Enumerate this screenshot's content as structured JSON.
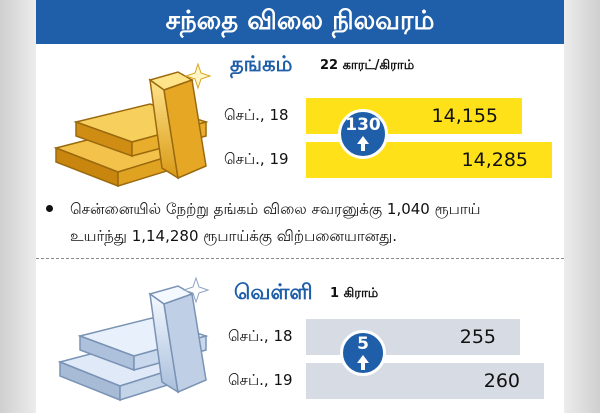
{
  "header": {
    "title": "சந்தை விலை நிலவரம்"
  },
  "gold": {
    "name": "தங்கம்",
    "unit": "22 காரட்/கிராம்",
    "rows": [
      {
        "date": "செப்., 18",
        "price": "14,155"
      },
      {
        "date": "செப்., 19",
        "price": "14,285"
      }
    ],
    "change": "130",
    "bar_color": "#ffe11a",
    "note": "சென்னையில் நேற்று தங்கம் விலை சவரனுக்கு 1,040 ரூபாய் உயர்ந்து 1,14,280 ரூபாய்க்கு விற்பனையானது."
  },
  "silver": {
    "name": "வெள்ளி",
    "unit": "1 கிராம்",
    "rows": [
      {
        "date": "செப்., 18",
        "price": "255"
      },
      {
        "date": "செப்., 19",
        "price": "260"
      }
    ],
    "change": "5",
    "bar_color": "#d7dbe3"
  },
  "colors": {
    "accent": "#1f5ea8"
  },
  "icons": {
    "gold": "gold-bars-icon",
    "silver": "silver-bars-icon",
    "up": "up-arrow-icon"
  }
}
